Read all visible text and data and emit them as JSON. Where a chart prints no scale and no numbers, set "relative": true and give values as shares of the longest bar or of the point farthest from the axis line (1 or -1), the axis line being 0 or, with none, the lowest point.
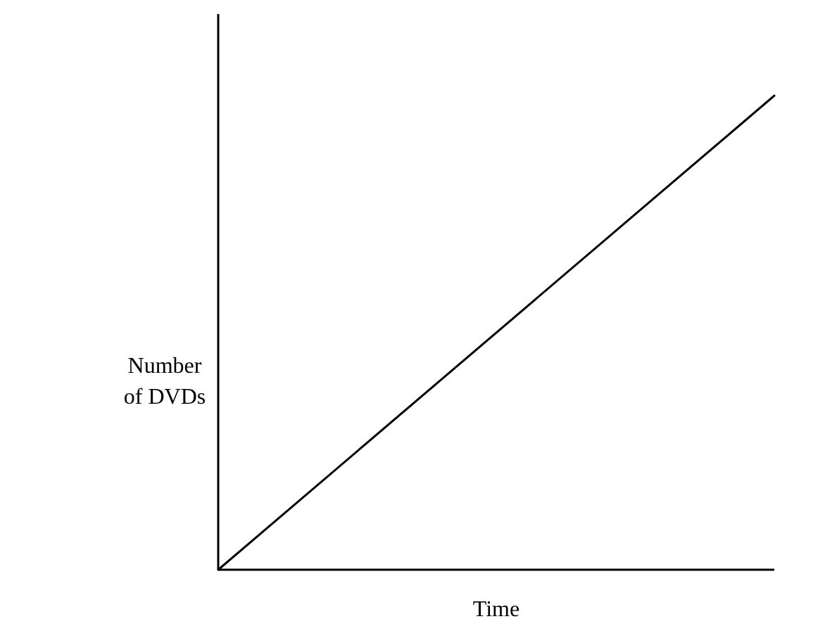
{
  "chart_data": {
    "type": "line",
    "xlabel": "Time",
    "ylabel": "Number of DVDs",
    "relative": true,
    "categories": [
      null,
      null
    ],
    "series": [
      {
        "color": "#000000",
        "values": [
          0,
          1
        ]
      }
    ]
  }
}
